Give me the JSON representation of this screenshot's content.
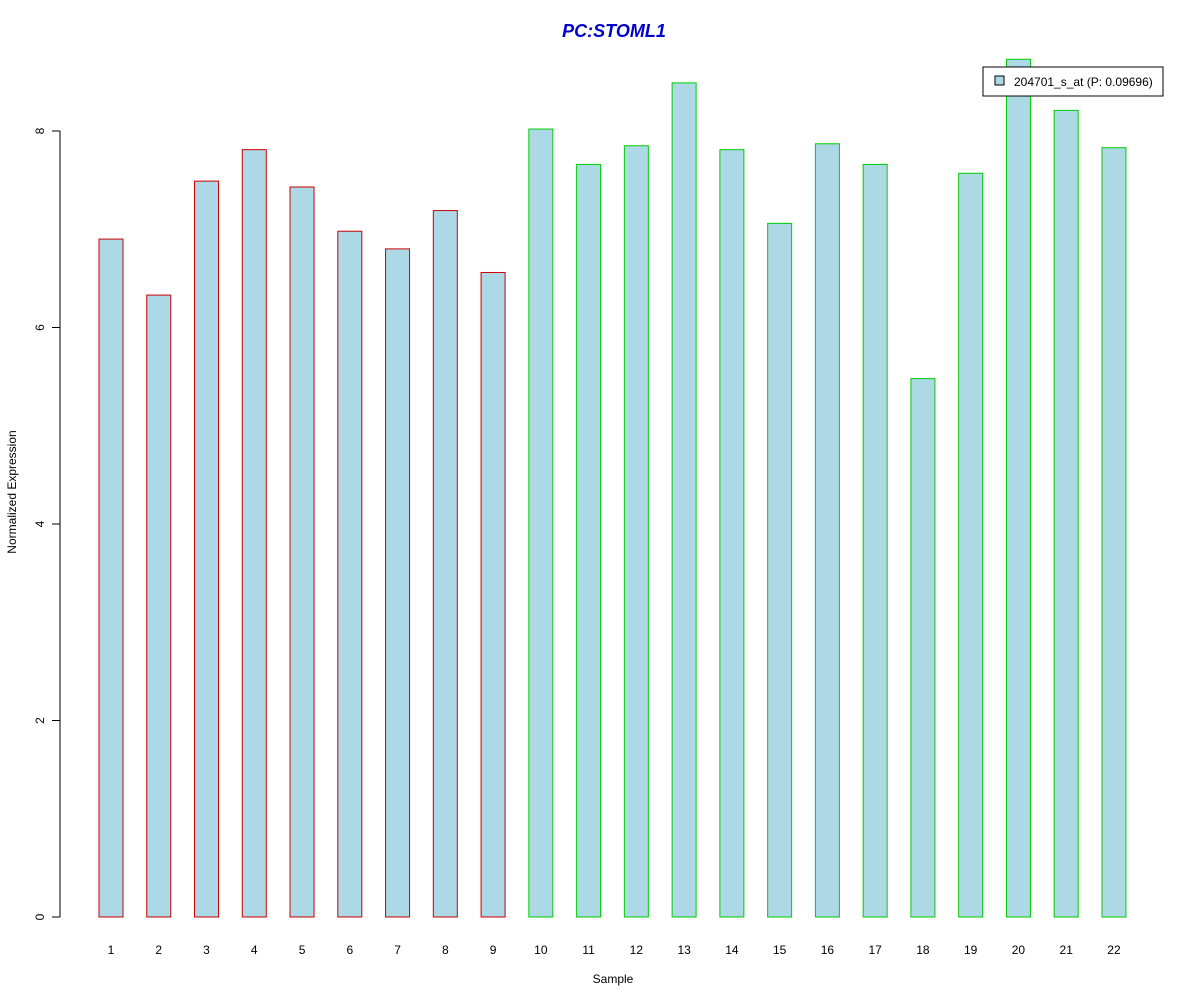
{
  "chart_data": {
    "type": "bar",
    "title": "PC:STOML1",
    "title_color": "#0000CC",
    "xlabel": "Sample",
    "ylabel": "Normalized Expression",
    "ylim": [
      0,
      8.8
    ],
    "yticks": [
      0,
      2,
      4,
      6,
      8
    ],
    "categories": [
      "1",
      "2",
      "3",
      "4",
      "5",
      "6",
      "7",
      "8",
      "9",
      "10",
      "11",
      "12",
      "13",
      "14",
      "15",
      "16",
      "17",
      "18",
      "19",
      "20",
      "21",
      "22"
    ],
    "series": [
      {
        "name": "204701_s_at (P: 0.09696)",
        "values": [
          6.9,
          6.33,
          7.49,
          7.81,
          7.43,
          6.98,
          6.8,
          7.19,
          6.56,
          8.02,
          7.66,
          7.85,
          8.49,
          7.81,
          7.06,
          7.87,
          7.66,
          5.48,
          7.57,
          8.73,
          8.21,
          7.83
        ],
        "fill_color": "#ADD8E6",
        "border_colors": [
          "#CC0000",
          "#CC0000",
          "#CC0000",
          "#CC0000",
          "#CC0000",
          "#CC0000",
          "#CC0000",
          "#CC0000",
          "#CC0000",
          "#00CC00",
          "#00CC00",
          "#00CC00",
          "#00CC00",
          "#00CC00",
          "#00CC00",
          "#00CC00",
          "#00CC00",
          "#00CC00",
          "#00CC00",
          "#00CC00",
          "#00CC00",
          "#00CC00"
        ]
      }
    ],
    "legend": {
      "placement": "top-right",
      "label": "204701_s_at (P: 0.09696)"
    },
    "grid": false
  }
}
